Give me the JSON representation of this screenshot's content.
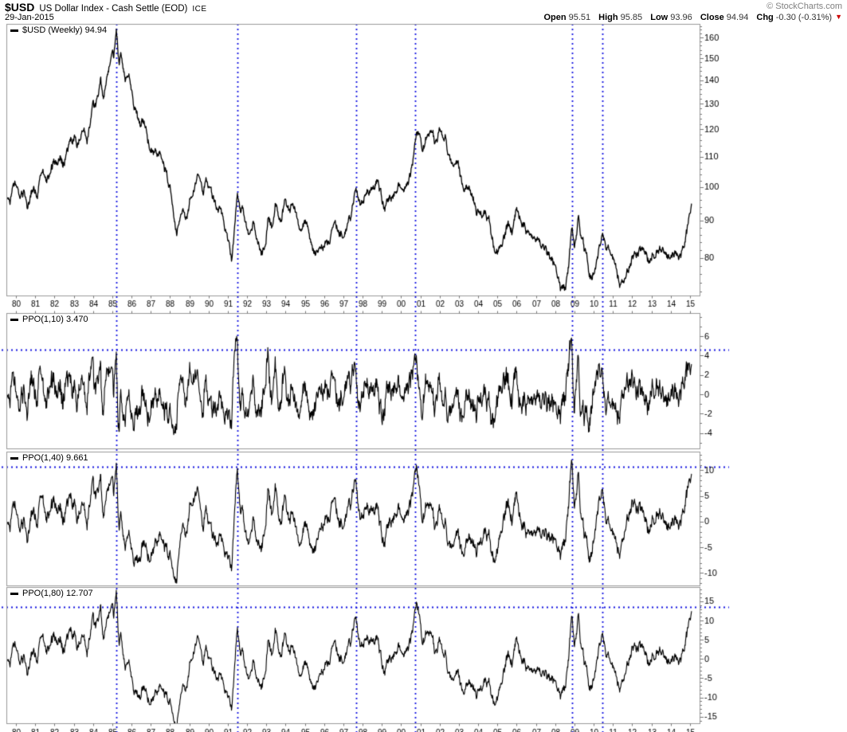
{
  "header": {
    "symbol": "$USD",
    "title": "US Dollar Index - Cash Settle (EOD)",
    "exchange": "ICE",
    "copyright": "© StockCharts.com",
    "date": "29-Jan-2015",
    "quote": {
      "open_label": "Open",
      "open": "95.51",
      "high_label": "High",
      "high": "95.85",
      "low_label": "Low",
      "low": "93.96",
      "close_label": "Close",
      "close": "94.94",
      "chg_label": "Chg",
      "chg": "-0.30 (-0.31%)",
      "direction": "down"
    }
  },
  "colors": {
    "series": "#000000",
    "dotted_blue": "#1414e0",
    "panel_border": "#999999",
    "tick_text": "#000000",
    "copyright_gray": "#808080",
    "quote_value": "#333333",
    "chg_down_red": "#cc0000"
  },
  "xaxis": {
    "labels": [
      "80",
      "81",
      "82",
      "83",
      "84",
      "85",
      "86",
      "87",
      "88",
      "89",
      "90",
      "91",
      "92",
      "93",
      "94",
      "95",
      "96",
      "97",
      "98",
      "99",
      "00",
      "01",
      "02",
      "03",
      "04",
      "05",
      "06",
      "07",
      "08",
      "09",
      "10",
      "11",
      "12",
      "13",
      "14",
      "15"
    ],
    "start_year": 1980,
    "end_year": 2015,
    "vline_years": [
      1985.21,
      1991.5,
      1997.66,
      2000.73,
      2008.88,
      2010.45
    ]
  },
  "chart_data": [
    {
      "id": "price",
      "type": "line",
      "label": "$USD (Weekly) 94.94",
      "symbol": "$USD",
      "timeframe": "Weekly",
      "last": 94.94,
      "yscale": "log",
      "ylim": [
        71.1,
        167.1
      ],
      "yticks": [
        160,
        150,
        140,
        130,
        120,
        110,
        100,
        90,
        80
      ],
      "minor_tick_step": 2,
      "anchors": [
        [
          1979.5,
          97.5
        ],
        [
          1979.7,
          95.5
        ],
        [
          1979.85,
          99.0
        ],
        [
          1980.0,
          99.5
        ],
        [
          1980.2,
          96.0
        ],
        [
          1980.4,
          98.0
        ],
        [
          1980.6,
          95.5
        ],
        [
          1980.9,
          101.0
        ],
        [
          1981.1,
          98.5
        ],
        [
          1981.4,
          104.5
        ],
        [
          1981.6,
          101.0
        ],
        [
          1982.0,
          107.5
        ],
        [
          1982.3,
          112.0
        ],
        [
          1982.45,
          108.5
        ],
        [
          1982.8,
          114.5
        ],
        [
          1983.05,
          116.5
        ],
        [
          1983.25,
          114.0
        ],
        [
          1983.55,
          119.5
        ],
        [
          1983.7,
          117.0
        ],
        [
          1984.0,
          128.5
        ],
        [
          1984.15,
          126.0
        ],
        [
          1984.4,
          136.5
        ],
        [
          1984.55,
          129.0
        ],
        [
          1984.8,
          143.0
        ],
        [
          1985.0,
          151.5
        ],
        [
          1985.08,
          148.0
        ],
        [
          1985.21,
          164.0
        ],
        [
          1985.35,
          150.0
        ],
        [
          1985.45,
          153.0
        ],
        [
          1985.65,
          141.5
        ],
        [
          1985.8,
          139.5
        ],
        [
          1985.9,
          141.0
        ],
        [
          1986.15,
          129.5
        ],
        [
          1986.45,
          120.5
        ],
        [
          1986.6,
          122.5
        ],
        [
          1986.95,
          114.0
        ],
        [
          1987.15,
          112.0
        ],
        [
          1987.35,
          110.5
        ],
        [
          1987.5,
          113.0
        ],
        [
          1987.75,
          106.5
        ],
        [
          1988.0,
          101.0
        ],
        [
          1988.2,
          90.5
        ],
        [
          1988.35,
          86.0
        ],
        [
          1988.6,
          93.0
        ],
        [
          1988.8,
          90.0
        ],
        [
          1989.1,
          97.0
        ],
        [
          1989.3,
          100.5
        ],
        [
          1989.5,
          104.0
        ],
        [
          1989.7,
          97.8
        ],
        [
          1989.9,
          101.5
        ],
        [
          1990.2,
          96.9
        ],
        [
          1990.55,
          93.0
        ],
        [
          1990.9,
          86.5
        ],
        [
          1991.1,
          82.5
        ],
        [
          1991.2,
          81.0
        ],
        [
          1991.5,
          96.8
        ],
        [
          1991.65,
          92.3
        ],
        [
          1991.8,
          94.0
        ],
        [
          1992.1,
          86.5
        ],
        [
          1992.3,
          90.5
        ],
        [
          1992.75,
          78.7
        ],
        [
          1992.95,
          82.5
        ],
        [
          1993.1,
          90.5
        ],
        [
          1993.3,
          88.0
        ],
        [
          1993.5,
          94.5
        ],
        [
          1993.7,
          88.5
        ],
        [
          1994.0,
          96.5
        ],
        [
          1994.2,
          93.5
        ],
        [
          1994.35,
          95.8
        ],
        [
          1994.65,
          90.4
        ],
        [
          1995.0,
          89.0
        ],
        [
          1995.2,
          86.5
        ],
        [
          1995.55,
          81.2
        ],
        [
          1995.8,
          85.0
        ],
        [
          1996.05,
          85.8
        ],
        [
          1996.25,
          84.5
        ],
        [
          1996.55,
          87.6
        ],
        [
          1996.8,
          86.6
        ],
        [
          1997.1,
          88.0
        ],
        [
          1997.4,
          93.2
        ],
        [
          1997.66,
          100.5
        ],
        [
          1997.9,
          96.1
        ],
        [
          1998.2,
          98.0
        ],
        [
          1998.45,
          99.2
        ],
        [
          1998.8,
          101.7
        ],
        [
          1999.1,
          94.5
        ],
        [
          1999.3,
          96.5
        ],
        [
          1999.55,
          97.6
        ],
        [
          1999.8,
          99.0
        ],
        [
          2000.0,
          100.5
        ],
        [
          2000.15,
          98.3
        ],
        [
          2000.45,
          104.3
        ],
        [
          2000.6,
          107.0
        ],
        [
          2000.8,
          118.0
        ],
        [
          2001.1,
          111.0
        ],
        [
          2001.5,
          120.5
        ],
        [
          2001.75,
          113.0
        ],
        [
          2002.1,
          120.0
        ],
        [
          2002.3,
          117.5
        ],
        [
          2002.5,
          110.0
        ],
        [
          2002.7,
          106.3
        ],
        [
          2002.95,
          107.5
        ],
        [
          2003.2,
          100.3
        ],
        [
          2003.45,
          99.5
        ],
        [
          2003.75,
          96.9
        ],
        [
          2004.0,
          93.2
        ],
        [
          2004.2,
          91.5
        ],
        [
          2004.35,
          92.5
        ],
        [
          2004.6,
          88.5
        ],
        [
          2004.95,
          81.0
        ],
        [
          2005.3,
          84.5
        ],
        [
          2005.55,
          88.7
        ],
        [
          2005.75,
          87.5
        ],
        [
          2005.95,
          92.3
        ],
        [
          2006.2,
          90.8
        ],
        [
          2006.6,
          86.6
        ],
        [
          2006.85,
          85.5
        ],
        [
          2007.1,
          84.5
        ],
        [
          2007.45,
          81.5
        ],
        [
          2007.7,
          80.5
        ],
        [
          2007.95,
          77.5
        ],
        [
          2008.2,
          73.5
        ],
        [
          2008.3,
          71.8
        ],
        [
          2008.55,
          72.5
        ],
        [
          2008.7,
          78.0
        ],
        [
          2008.85,
          88.3
        ],
        [
          2009.0,
          82.0
        ],
        [
          2009.2,
          89.3
        ],
        [
          2009.35,
          83.5
        ],
        [
          2009.55,
          80.0
        ],
        [
          2009.9,
          75.5
        ],
        [
          2010.1,
          78.5
        ],
        [
          2010.45,
          88.5
        ],
        [
          2010.6,
          83.5
        ],
        [
          2010.85,
          81.0
        ],
        [
          2011.05,
          79.0
        ],
        [
          2011.2,
          77.5
        ],
        [
          2011.4,
          73.5
        ],
        [
          2011.6,
          74.8
        ],
        [
          2011.8,
          76.5
        ],
        [
          2012.0,
          80.0
        ],
        [
          2012.2,
          79.0
        ],
        [
          2012.4,
          82.5
        ],
        [
          2012.6,
          81.5
        ],
        [
          2012.8,
          80.0
        ],
        [
          2013.0,
          79.8
        ],
        [
          2013.3,
          83.5
        ],
        [
          2013.5,
          84.3
        ],
        [
          2013.75,
          81.5
        ],
        [
          2013.95,
          80.3
        ],
        [
          2014.1,
          80.7
        ],
        [
          2014.35,
          80.0
        ],
        [
          2014.55,
          79.8
        ],
        [
          2014.7,
          81.5
        ],
        [
          2014.85,
          86.0
        ],
        [
          2015.0,
          92.0
        ],
        [
          2015.08,
          94.94
        ]
      ]
    },
    {
      "id": "ppo_1_10",
      "type": "line",
      "label": "PPO(1,10) 3.470",
      "indicator": "PPO",
      "derived_from": "price",
      "fast": 1,
      "slow": 10,
      "last": 3.47,
      "ylim": [
        -5.6,
        8.4
      ],
      "yticks": [
        6,
        4,
        2,
        0,
        -2,
        -4
      ],
      "minor_tick_step": 1,
      "hline": 4.6
    },
    {
      "id": "ppo_1_40",
      "type": "line",
      "label": "PPO(1,40) 9.661",
      "indicator": "PPO",
      "derived_from": "price",
      "fast": 1,
      "slow": 40,
      "last": 9.661,
      "ylim": [
        -12.4,
        13.6
      ],
      "yticks": [
        10,
        5,
        0,
        -5,
        -10
      ],
      "minor_tick_step": 1,
      "hline": 10.6
    },
    {
      "id": "ppo_1_80",
      "type": "line",
      "label": "PPO(1,80) 12.707",
      "indicator": "PPO",
      "derived_from": "price",
      "fast": 1,
      "slow": 80,
      "last": 12.707,
      "ylim": [
        -16.7,
        18.7
      ],
      "yticks": [
        15,
        10,
        5,
        0,
        -5,
        -10,
        -15
      ],
      "minor_tick_step": 1,
      "hline": 13.6
    }
  ]
}
